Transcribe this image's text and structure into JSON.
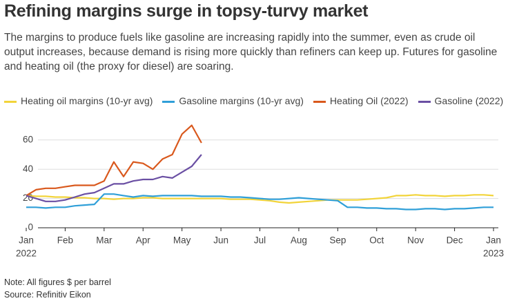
{
  "chart_data": {
    "type": "line",
    "title": "Refining margins surge in topsy-turvy market",
    "subtitle": "The margins to produce fuels like gasoline are increasing rapidly into the summer, even as crude oil output increases, because demand is rising more quickly than refiners can keep up. Futures for gasoline and heating oil (the proxy for diesel) are soaring.",
    "note": "Note: All figures $ per barrel",
    "source": "Source: Refinitiv Eikon",
    "x": [
      0,
      0.25,
      0.5,
      0.75,
      1,
      1.25,
      1.5,
      1.75,
      2,
      2.25,
      2.5,
      2.75,
      3,
      3.25,
      3.5,
      3.75,
      4,
      4.25,
      4.5,
      4.75,
      5,
      5.25,
      5.5,
      5.75,
      6,
      6.25,
      6.5,
      6.75,
      7,
      7.25,
      7.5,
      7.75,
      8,
      8.25,
      8.5,
      8.75,
      9,
      9.25,
      9.5,
      9.75,
      10,
      10.25,
      10.5,
      10.75,
      11,
      11.25,
      11.5,
      11.75,
      12
    ],
    "series": [
      {
        "name": "Heating oil margins (10-yr avg)",
        "color": "#f2d43a",
        "values": [
          22,
          21.5,
          21.5,
          21,
          21,
          20.5,
          20.5,
          20,
          20,
          19.5,
          20,
          20,
          20.5,
          20.5,
          20,
          20,
          20,
          20,
          20,
          20,
          20,
          19.5,
          19.5,
          19.5,
          19,
          18.5,
          17.5,
          17,
          17.5,
          18,
          18.5,
          19,
          19,
          19,
          19,
          19.5,
          20,
          20.5,
          22,
          22,
          22.5,
          22,
          22,
          21.5,
          22,
          22,
          22.5,
          22.5,
          22
        ]
      },
      {
        "name": "Gasoline margins (10-yr avg)",
        "color": "#2f9fd8",
        "values": [
          14,
          14,
          13.5,
          14,
          14,
          15,
          15.5,
          16,
          23,
          23,
          22,
          21,
          22,
          21.5,
          22,
          22,
          22,
          22,
          21.5,
          21.5,
          21.5,
          21,
          21,
          20.5,
          20,
          19.5,
          19.5,
          20,
          20.5,
          20,
          19.5,
          19,
          18.5,
          14,
          14,
          13.5,
          13.5,
          13,
          13,
          12.5,
          12.5,
          13,
          13,
          12.5,
          13,
          13,
          13.5,
          14,
          14
        ]
      },
      {
        "name": "Heating Oil (2022)",
        "color": "#d9581c",
        "values": [
          22,
          26,
          27,
          27,
          28,
          29,
          29,
          29,
          32,
          45,
          35,
          45,
          44,
          40,
          47,
          50,
          64,
          70,
          58,
          null,
          null,
          null,
          null,
          null,
          null,
          null,
          null,
          null,
          null,
          null,
          null,
          null,
          null,
          null,
          null,
          null,
          null,
          null,
          null,
          null,
          null,
          null,
          null,
          null,
          null,
          null,
          null,
          null,
          null
        ]
      },
      {
        "name": "Gasoline (2022)",
        "color": "#6a4fa3",
        "values": [
          22,
          20,
          18,
          18,
          19,
          21,
          23,
          24,
          27,
          30,
          30,
          32,
          33,
          33,
          35,
          34,
          38,
          42,
          50,
          null,
          null,
          null,
          null,
          null,
          null,
          null,
          null,
          null,
          null,
          null,
          null,
          null,
          null,
          null,
          null,
          null,
          null,
          null,
          null,
          null,
          null,
          null,
          null,
          null,
          null,
          null,
          null,
          null,
          null
        ]
      }
    ],
    "xlim": [
      0,
      12
    ],
    "xticks": [
      {
        "value": 0,
        "label": "Jan"
      },
      {
        "value": 1,
        "label": "Feb"
      },
      {
        "value": 2,
        "label": "Mar"
      },
      {
        "value": 3,
        "label": "Apr"
      },
      {
        "value": 4,
        "label": "May"
      },
      {
        "value": 5,
        "label": "Jun"
      },
      {
        "value": 6,
        "label": "Jul"
      },
      {
        "value": 7,
        "label": "Aug"
      },
      {
        "value": 8,
        "label": "Sep"
      },
      {
        "value": 9,
        "label": "Oct"
      },
      {
        "value": 10,
        "label": "Nov"
      },
      {
        "value": 11,
        "label": "Dec"
      },
      {
        "value": 12,
        "label": "Jan"
      }
    ],
    "x_year_labels": [
      {
        "value": 0,
        "label": "2022"
      },
      {
        "value": 12,
        "label": "2023"
      }
    ],
    "ylim": [
      0,
      75
    ],
    "yticks": [
      0,
      20,
      40,
      60
    ],
    "grid": true,
    "legend": "top"
  }
}
